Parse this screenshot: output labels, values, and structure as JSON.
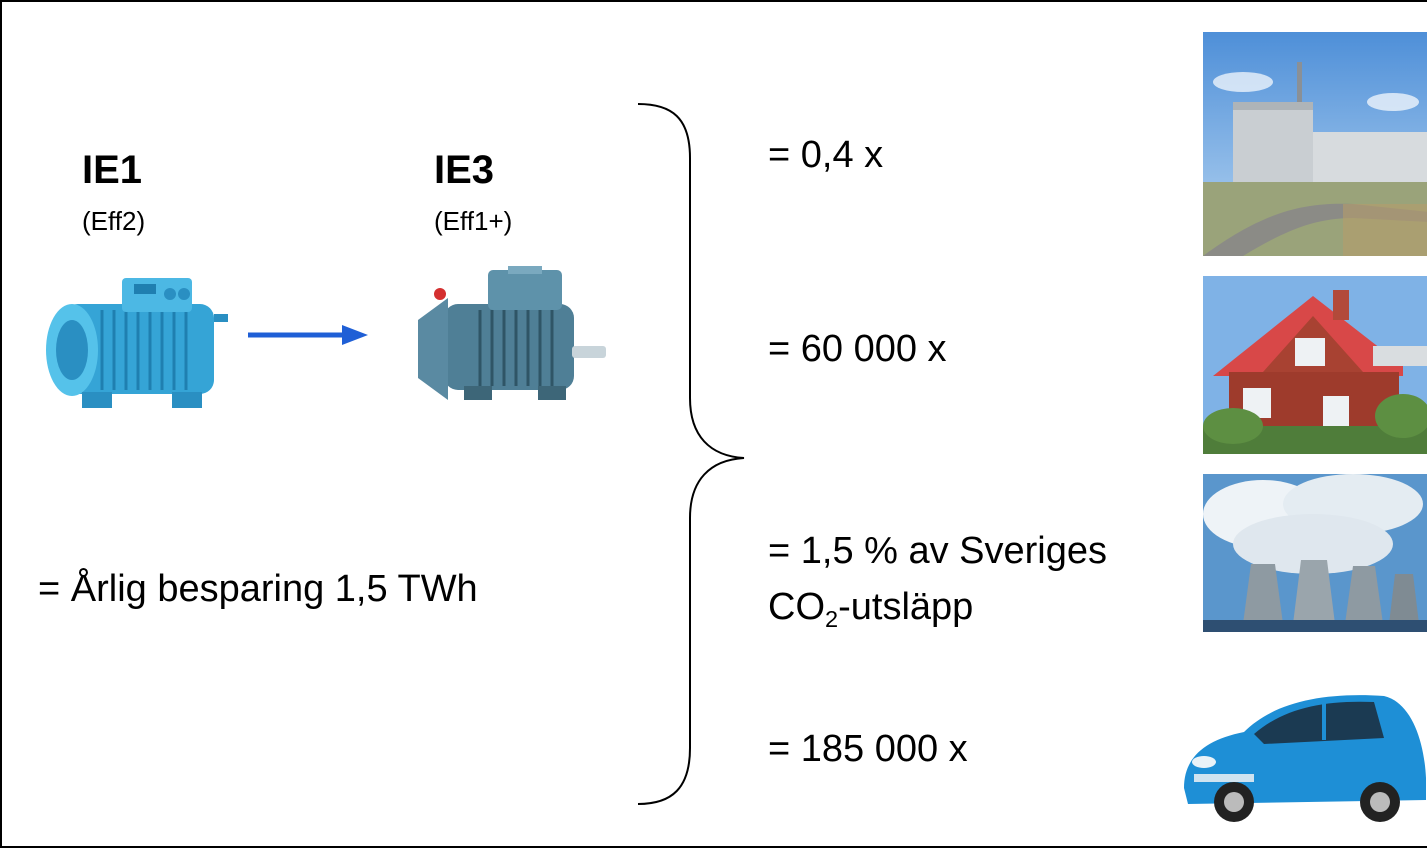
{
  "motors": {
    "old": {
      "label": "IE1",
      "sub": "(Eff2)"
    },
    "new": {
      "label": "IE3",
      "sub": "(Eff1+)"
    }
  },
  "savings_text": "= Årlig besparing 1,5 TWh",
  "equivalents": [
    {
      "text": "= 0,4 x",
      "image": "nuclear-power-plant"
    },
    {
      "text": "= 60 000 x",
      "image": "house"
    },
    {
      "line1": "= 1,5 % av Sveriges",
      "line2_main": "CO",
      "line2_sub": "2",
      "line2_rest": "-utsläpp",
      "image": "cooling-towers"
    },
    {
      "text": "= 185 000 x",
      "image": "car"
    }
  ],
  "colors": {
    "arrow": "#1f5fd6",
    "motor_old": "#3aa8d8",
    "motor_new": "#4f7f96"
  }
}
